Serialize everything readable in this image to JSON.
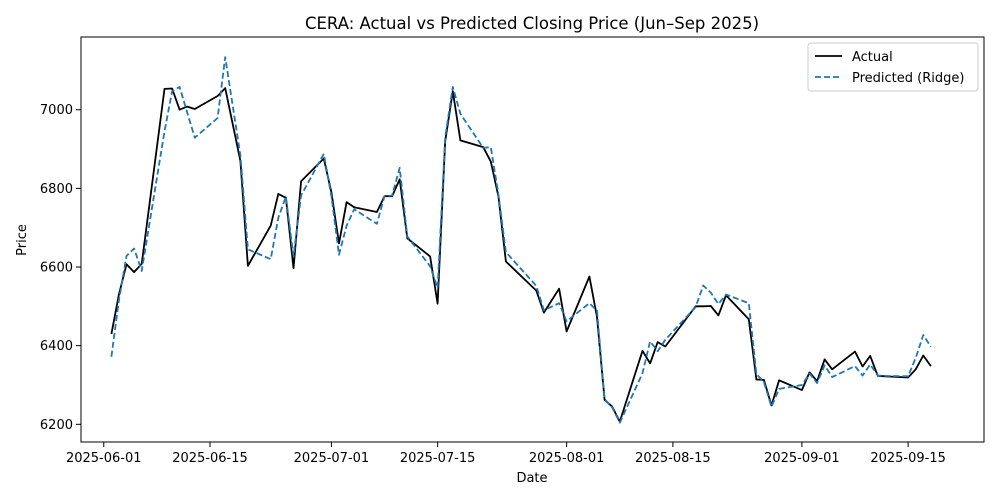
{
  "chart_data": {
    "type": "line",
    "title": "CERA: Actual vs Predicted Closing Price (Jun–Sep 2025)",
    "xlabel": "Date",
    "ylabel": "Price",
    "xlim": [
      "2025-05-29",
      "2025-09-25"
    ],
    "ylim": [
      6155,
      7185
    ],
    "x_ticks": [
      "2025-06-01",
      "2025-06-15",
      "2025-07-01",
      "2025-07-15",
      "2025-08-01",
      "2025-08-15",
      "2025-09-01",
      "2025-09-15"
    ],
    "y_ticks": [
      6200,
      6400,
      6600,
      6800,
      7000
    ],
    "grid": false,
    "legend": "top-right",
    "dates": [
      "2025-06-02",
      "2025-06-03",
      "2025-06-04",
      "2025-06-05",
      "2025-06-06",
      "2025-06-09",
      "2025-06-10",
      "2025-06-11",
      "2025-06-12",
      "2025-06-13",
      "2025-06-16",
      "2025-06-17",
      "2025-06-19",
      "2025-06-20",
      "2025-06-23",
      "2025-06-24",
      "2025-06-25",
      "2025-06-26",
      "2025-06-27",
      "2025-06-30",
      "2025-07-01",
      "2025-07-02",
      "2025-07-03",
      "2025-07-04",
      "2025-07-07",
      "2025-07-08",
      "2025-07-09",
      "2025-07-10",
      "2025-07-11",
      "2025-07-14",
      "2025-07-15",
      "2025-07-16",
      "2025-07-17",
      "2025-07-18",
      "2025-07-21",
      "2025-07-22",
      "2025-07-23",
      "2025-07-24",
      "2025-07-28",
      "2025-07-29",
      "2025-07-31",
      "2025-08-01",
      "2025-08-04",
      "2025-08-05",
      "2025-08-06",
      "2025-08-07",
      "2025-08-08",
      "2025-08-11",
      "2025-08-12",
      "2025-08-13",
      "2025-08-14",
      "2025-08-18",
      "2025-08-19",
      "2025-08-20",
      "2025-08-21",
      "2025-08-22",
      "2025-08-25",
      "2025-08-26",
      "2025-08-27",
      "2025-08-28",
      "2025-08-29",
      "2025-09-01",
      "2025-09-02",
      "2025-09-03",
      "2025-09-04",
      "2025-09-05",
      "2025-09-08",
      "2025-09-09",
      "2025-09-10",
      "2025-09-11",
      "2025-09-12",
      "2025-09-15",
      "2025-09-16",
      "2025-09-17",
      "2025-09-18"
    ],
    "series": [
      {
        "name": "Actual",
        "color": "#000000",
        "style": "solid",
        "values": [
          6430,
          6530,
          6607,
          6587,
          6608,
          7053,
          7054,
          7000,
          7008,
          7002,
          7035,
          7055,
          6870,
          6603,
          6705,
          6786,
          6776,
          6597,
          6818,
          6876,
          6790,
          6660,
          6765,
          6752,
          6740,
          6780,
          6780,
          6823,
          6673,
          6627,
          6507,
          6920,
          7047,
          6922,
          6905,
          6868,
          6780,
          6614,
          6540,
          6484,
          6545,
          6436,
          6576,
          6473,
          6262,
          6245,
          6207,
          6387,
          6355,
          6409,
          6398,
          6500,
          6500,
          6501,
          6477,
          6528,
          6467,
          6314,
          6313,
          6248,
          6312,
          6287,
          6332,
          6310,
          6365,
          6340,
          6385,
          6347,
          6374,
          6323,
          6322,
          6319,
          6340,
          6375,
          6348
        ]
      },
      {
        "name": "Predicted (Ridge)",
        "color": "#1f77b4",
        "style": "dashed",
        "values": [
          6372,
          6515,
          6628,
          6647,
          6590,
          6945,
          7047,
          7058,
          6993,
          6929,
          6979,
          7134,
          6884,
          6645,
          6620,
          6725,
          6779,
          6627,
          6782,
          6888,
          6780,
          6631,
          6705,
          6747,
          6710,
          6780,
          6782,
          6852,
          6678,
          6602,
          6547,
          6930,
          7058,
          6990,
          6903,
          6905,
          6785,
          6638,
          6552,
          6490,
          6508,
          6462,
          6508,
          6489,
          6264,
          6243,
          6204,
          6330,
          6411,
          6386,
          6415,
          6498,
          6553,
          6535,
          6506,
          6530,
          6508,
          6328,
          6307,
          6245,
          6290,
          6300,
          6329,
          6305,
          6350,
          6320,
          6348,
          6324,
          6352,
          6324,
          6323,
          6322,
          6369,
          6427,
          6397
        ]
      }
    ]
  }
}
